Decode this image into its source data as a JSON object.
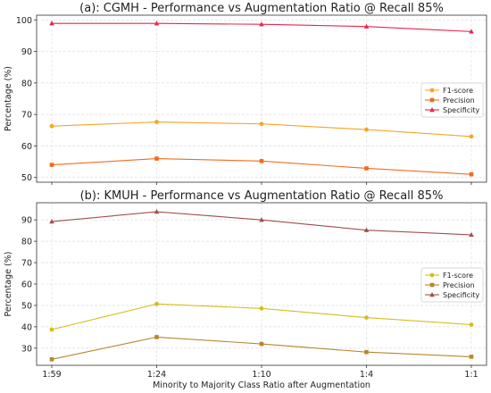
{
  "chart_data": [
    {
      "type": "line",
      "title": "(a): CGMH - Performance vs Augmentation Ratio @ Recall 85%",
      "ylabel": "Percentage (%)",
      "xlabel": "",
      "categories": [
        "1:59",
        "1:24",
        "1:10",
        "1:4",
        "1:1"
      ],
      "ylim": [
        48.5,
        101.5
      ],
      "yticks": [
        50,
        60,
        70,
        80,
        90,
        100
      ],
      "grid": true,
      "legend_position": "right",
      "series": [
        {
          "name": "F1-score",
          "values": [
            66.3,
            67.6,
            67.0,
            65.2,
            63.0
          ],
          "color": "#f5a623",
          "marker": "circle"
        },
        {
          "name": "Precision",
          "values": [
            54.0,
            56.0,
            55.2,
            52.9,
            51.0
          ],
          "color": "#f26b21",
          "marker": "square"
        },
        {
          "name": "Specificity",
          "values": [
            98.9,
            98.9,
            98.6,
            97.9,
            96.3
          ],
          "color": "#e8274b",
          "marker": "triangle"
        }
      ]
    },
    {
      "type": "line",
      "title": "(b): KMUH - Performance vs Augmentation Ratio @ Recall 85%",
      "ylabel": "Percentage (%)",
      "xlabel": "Minority to Majority Class Ratio after Augmentation",
      "categories": [
        "1:59",
        "1:24",
        "1:10",
        "1:4",
        "1:1"
      ],
      "ylim": [
        22,
        98
      ],
      "yticks": [
        30,
        40,
        50,
        60,
        70,
        80,
        90
      ],
      "grid": true,
      "legend_position": "right",
      "series": [
        {
          "name": "F1-score",
          "values": [
            38.7,
            50.7,
            48.6,
            44.3,
            41.0
          ],
          "color": "#d4bf1c",
          "marker": "circle"
        },
        {
          "name": "Precision",
          "values": [
            24.8,
            35.2,
            32.0,
            28.2,
            26.0
          ],
          "color": "#b8862e",
          "marker": "square"
        },
        {
          "name": "Specificity",
          "values": [
            89.2,
            93.8,
            90.0,
            85.2,
            83.0
          ],
          "color": "#a0504d",
          "marker": "triangle"
        }
      ]
    }
  ]
}
